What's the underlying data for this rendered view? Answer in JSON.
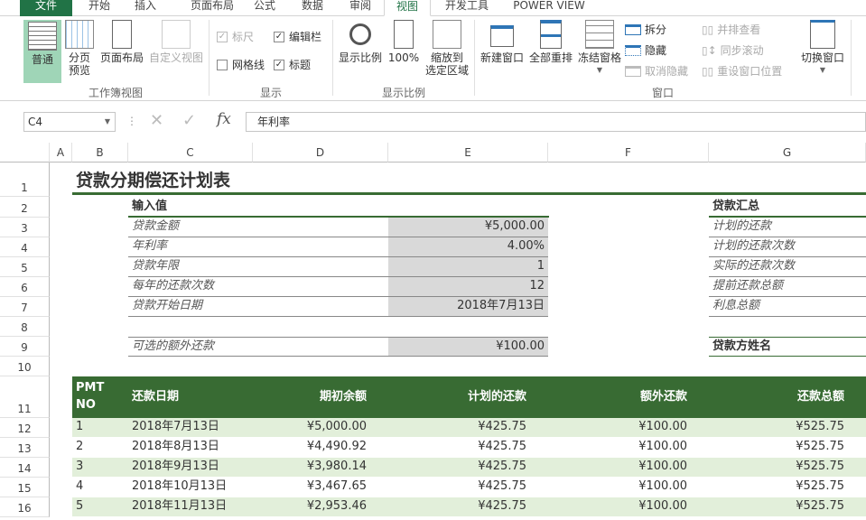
{
  "tabs": [
    "文件",
    "开始",
    "插入",
    "页面布局",
    "公式",
    "数据",
    "审阅",
    "视图",
    "开发工具",
    "POWER VIEW"
  ],
  "ribbon": {
    "workbook_views": {
      "group": "工作簿视图",
      "normal": "普通",
      "page_break": "分页\n预览",
      "page_layout": "页面布局",
      "custom": "自定义视图"
    },
    "show": {
      "group": "显示",
      "ruler": "标尺",
      "formula_bar": "编辑栏",
      "gridlines": "网格线",
      "headings": "标题",
      "ruler_checked": true,
      "formula_bar_checked": true,
      "gridlines_checked": false,
      "headings_checked": true
    },
    "zoom": {
      "group": "显示比例",
      "zoom": "显示比例",
      "hundred": "100%",
      "to_selection": "缩放到\n选定区域"
    },
    "window": {
      "group": "窗口",
      "new_window": "新建窗口",
      "arrange_all": "全部重排",
      "freeze": "冻结窗格",
      "split": "拆分",
      "hide": "隐藏",
      "unhide": "取消隐藏",
      "side_by_side": "并排查看",
      "sync_scroll": "同步滚动",
      "reset_pos": "重设窗口位置",
      "switch": "切换窗口"
    }
  },
  "formula_bar": {
    "name_box": "C4",
    "formula": "年利率"
  },
  "columns": [
    "A",
    "B",
    "C",
    "D",
    "E",
    "F",
    "G"
  ],
  "rows": [
    "1",
    "2",
    "3",
    "4",
    "5",
    "6",
    "7",
    "8",
    "9",
    "10",
    "11",
    "12",
    "13",
    "14",
    "15",
    "16"
  ],
  "sheet": {
    "title": "贷款分期偿还计划表",
    "inputs_header": "输入值",
    "inputs": [
      [
        "贷款金额",
        "¥5,000.00"
      ],
      [
        "年利率",
        "4.00%"
      ],
      [
        "贷款年限",
        "1"
      ],
      [
        "每年的还款次数",
        "12"
      ],
      [
        "贷款开始日期",
        "2018年7月13日"
      ]
    ],
    "extra_label": "可选的额外还款",
    "extra_value": "¥100.00",
    "summary_header": "贷款汇总",
    "summary": [
      "计划的还款",
      "计划的还款次数",
      "实际的还款次数",
      "提前还款总额",
      "利息总额"
    ],
    "lender": "贷款方姓名",
    "table_headers": [
      "PMT\nNO",
      "还款日期",
      "期初余额",
      "计划的还款",
      "额外还款",
      "还款总额"
    ],
    "table_rows": [
      [
        "1",
        "2018年7月13日",
        "¥5,000.00",
        "¥425.75",
        "¥100.00",
        "¥525.75"
      ],
      [
        "2",
        "2018年8月13日",
        "¥4,490.92",
        "¥425.75",
        "¥100.00",
        "¥525.75"
      ],
      [
        "3",
        "2018年9月13日",
        "¥3,980.14",
        "¥425.75",
        "¥100.00",
        "¥525.75"
      ],
      [
        "4",
        "2018年10月13日",
        "¥3,467.65",
        "¥425.75",
        "¥100.00",
        "¥525.75"
      ],
      [
        "5",
        "2018年11月13日",
        "¥2,953.46",
        "¥425.75",
        "¥100.00",
        "¥525.75"
      ]
    ]
  },
  "colors": {
    "accent": "#217346",
    "header_green": "#386b33",
    "band": "#e2efda",
    "input_fill": "#d9d9d9"
  }
}
